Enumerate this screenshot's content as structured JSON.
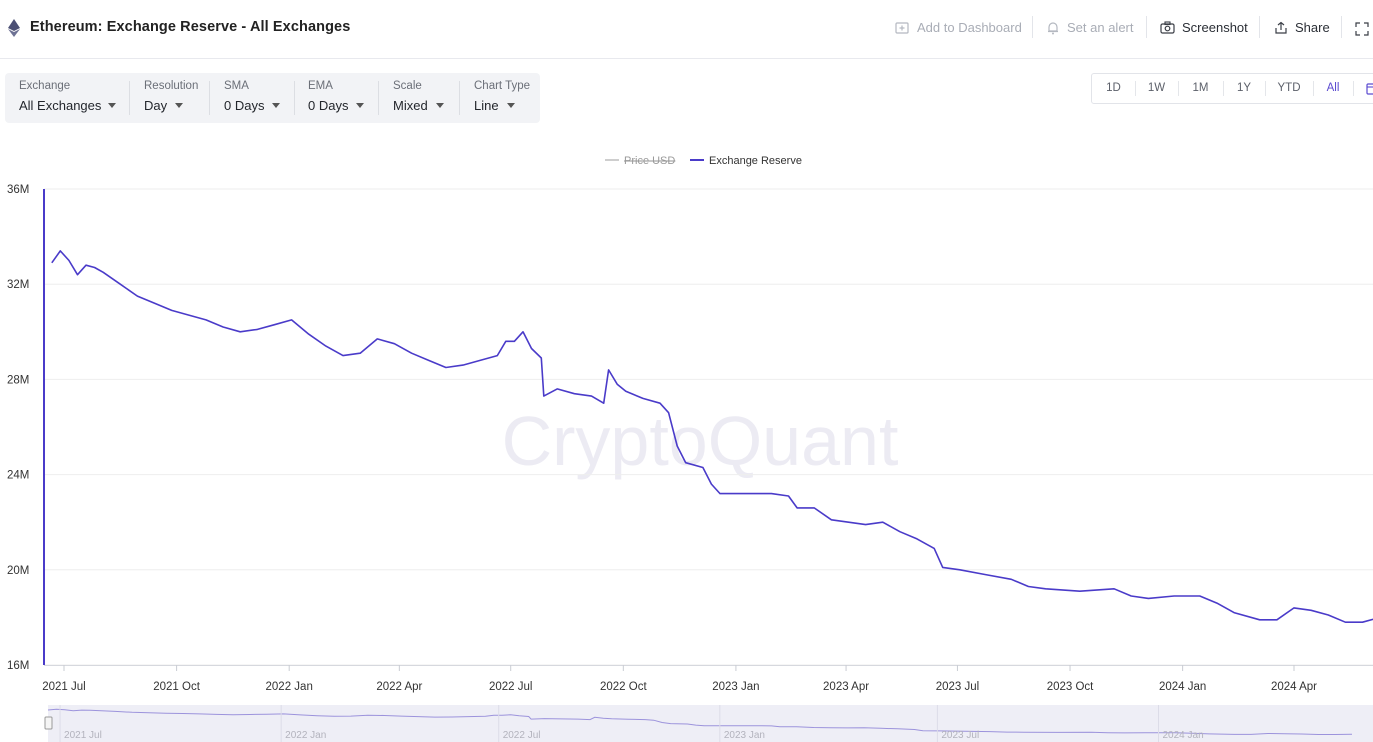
{
  "header": {
    "title": "Ethereum: Exchange Reserve - All Exchanges",
    "add_dashboard": "Add to Dashboard",
    "set_alert": "Set an alert",
    "screenshot": "Screenshot",
    "share": "Share"
  },
  "controls": [
    {
      "label": "Exchange",
      "value": "All Exchanges"
    },
    {
      "label": "Resolution",
      "value": "Day"
    },
    {
      "label": "SMA",
      "value": "0 Days"
    },
    {
      "label": "EMA",
      "value": "0 Days"
    },
    {
      "label": "Scale",
      "value": "Mixed"
    },
    {
      "label": "Chart Type",
      "value": "Line"
    }
  ],
  "ranges": [
    "1D",
    "1W",
    "1M",
    "1Y",
    "YTD",
    "All"
  ],
  "active_range": "All",
  "watermark": "CryptoQuant",
  "colors": {
    "accent": "#4a3bc9",
    "muted": "#bdbdbd",
    "grid": "#eeeeee"
  },
  "chart_data": {
    "type": "line",
    "legend": [
      {
        "name": "Price USD",
        "hidden": true
      },
      {
        "name": "Exchange Reserve",
        "hidden": false
      }
    ],
    "ylim": [
      16000000,
      36000000
    ],
    "y_ticks": [
      "36M",
      "32M",
      "28M",
      "24M",
      "20M",
      "16M"
    ],
    "x_ticks": [
      "2021 Jul",
      "2021 Oct",
      "2022 Jan",
      "2022 Apr",
      "2022 Jul",
      "2022 Oct",
      "2023 Jan",
      "2023 Apr",
      "2023 Jul",
      "2023 Oct",
      "2024 Jan",
      "2024 Apr"
    ],
    "navigator_ticks": [
      "2021 Jul",
      "2022 Jan",
      "2022 Jul",
      "2023 Jan",
      "2023 Jul",
      "2024 Jan"
    ],
    "series": [
      {
        "name": "Exchange Reserve",
        "points": [
          [
            "2021-06-21",
            32.9
          ],
          [
            "2021-06-28",
            33.4
          ],
          [
            "2021-07-05",
            33.0
          ],
          [
            "2021-07-12",
            32.4
          ],
          [
            "2021-07-19",
            32.8
          ],
          [
            "2021-07-26",
            32.7
          ],
          [
            "2021-08-02",
            32.5
          ],
          [
            "2021-08-16",
            32.0
          ],
          [
            "2021-08-30",
            31.5
          ],
          [
            "2021-09-13",
            31.2
          ],
          [
            "2021-09-27",
            30.9
          ],
          [
            "2021-10-11",
            30.7
          ],
          [
            "2021-10-25",
            30.5
          ],
          [
            "2021-11-08",
            30.2
          ],
          [
            "2021-11-22",
            30.0
          ],
          [
            "2021-12-06",
            30.1
          ],
          [
            "2021-12-20",
            30.3
          ],
          [
            "2022-01-03",
            30.5
          ],
          [
            "2022-01-17",
            29.9
          ],
          [
            "2022-01-31",
            29.4
          ],
          [
            "2022-02-14",
            29.0
          ],
          [
            "2022-02-28",
            29.1
          ],
          [
            "2022-03-14",
            29.7
          ],
          [
            "2022-03-28",
            29.5
          ],
          [
            "2022-04-11",
            29.1
          ],
          [
            "2022-04-25",
            28.8
          ],
          [
            "2022-05-09",
            28.5
          ],
          [
            "2022-05-23",
            28.6
          ],
          [
            "2022-06-06",
            28.8
          ],
          [
            "2022-06-20",
            29.0
          ],
          [
            "2022-06-27",
            29.6
          ],
          [
            "2022-07-04",
            29.6
          ],
          [
            "2022-07-11",
            30.0
          ],
          [
            "2022-07-18",
            29.3
          ],
          [
            "2022-07-26",
            28.9
          ],
          [
            "2022-07-28",
            27.3
          ],
          [
            "2022-08-08",
            27.6
          ],
          [
            "2022-08-22",
            27.4
          ],
          [
            "2022-09-05",
            27.3
          ],
          [
            "2022-09-15",
            27.0
          ],
          [
            "2022-09-19",
            28.4
          ],
          [
            "2022-09-26",
            27.8
          ],
          [
            "2022-10-03",
            27.5
          ],
          [
            "2022-10-17",
            27.2
          ],
          [
            "2022-10-31",
            27.0
          ],
          [
            "2022-11-07",
            26.6
          ],
          [
            "2022-11-14",
            25.2
          ],
          [
            "2022-11-21",
            24.5
          ],
          [
            "2022-12-05",
            24.3
          ],
          [
            "2022-12-12",
            23.6
          ],
          [
            "2022-12-19",
            23.2
          ],
          [
            "2023-01-09",
            23.2
          ],
          [
            "2023-01-30",
            23.2
          ],
          [
            "2023-02-13",
            23.1
          ],
          [
            "2023-02-20",
            22.6
          ],
          [
            "2023-03-06",
            22.6
          ],
          [
            "2023-03-20",
            22.1
          ],
          [
            "2023-04-03",
            22.0
          ],
          [
            "2023-04-17",
            21.9
          ],
          [
            "2023-05-01",
            22.0
          ],
          [
            "2023-05-15",
            21.6
          ],
          [
            "2023-05-29",
            21.3
          ],
          [
            "2023-06-12",
            20.9
          ],
          [
            "2023-06-19",
            20.1
          ],
          [
            "2023-07-03",
            20.0
          ],
          [
            "2023-07-24",
            19.8
          ],
          [
            "2023-08-14",
            19.6
          ],
          [
            "2023-08-28",
            19.3
          ],
          [
            "2023-09-11",
            19.2
          ],
          [
            "2023-10-09",
            19.1
          ],
          [
            "2023-11-06",
            19.2
          ],
          [
            "2023-11-20",
            18.9
          ],
          [
            "2023-12-04",
            18.8
          ],
          [
            "2023-12-25",
            18.9
          ],
          [
            "2024-01-15",
            18.9
          ],
          [
            "2024-01-29",
            18.6
          ],
          [
            "2024-02-12",
            18.2
          ],
          [
            "2024-03-04",
            17.9
          ],
          [
            "2024-03-18",
            17.9
          ],
          [
            "2024-04-01",
            18.4
          ],
          [
            "2024-04-15",
            18.3
          ],
          [
            "2024-04-29",
            18.1
          ],
          [
            "2024-05-13",
            17.8
          ],
          [
            "2024-05-27",
            17.8
          ],
          [
            "2024-06-10",
            18.0
          ]
        ]
      }
    ]
  }
}
